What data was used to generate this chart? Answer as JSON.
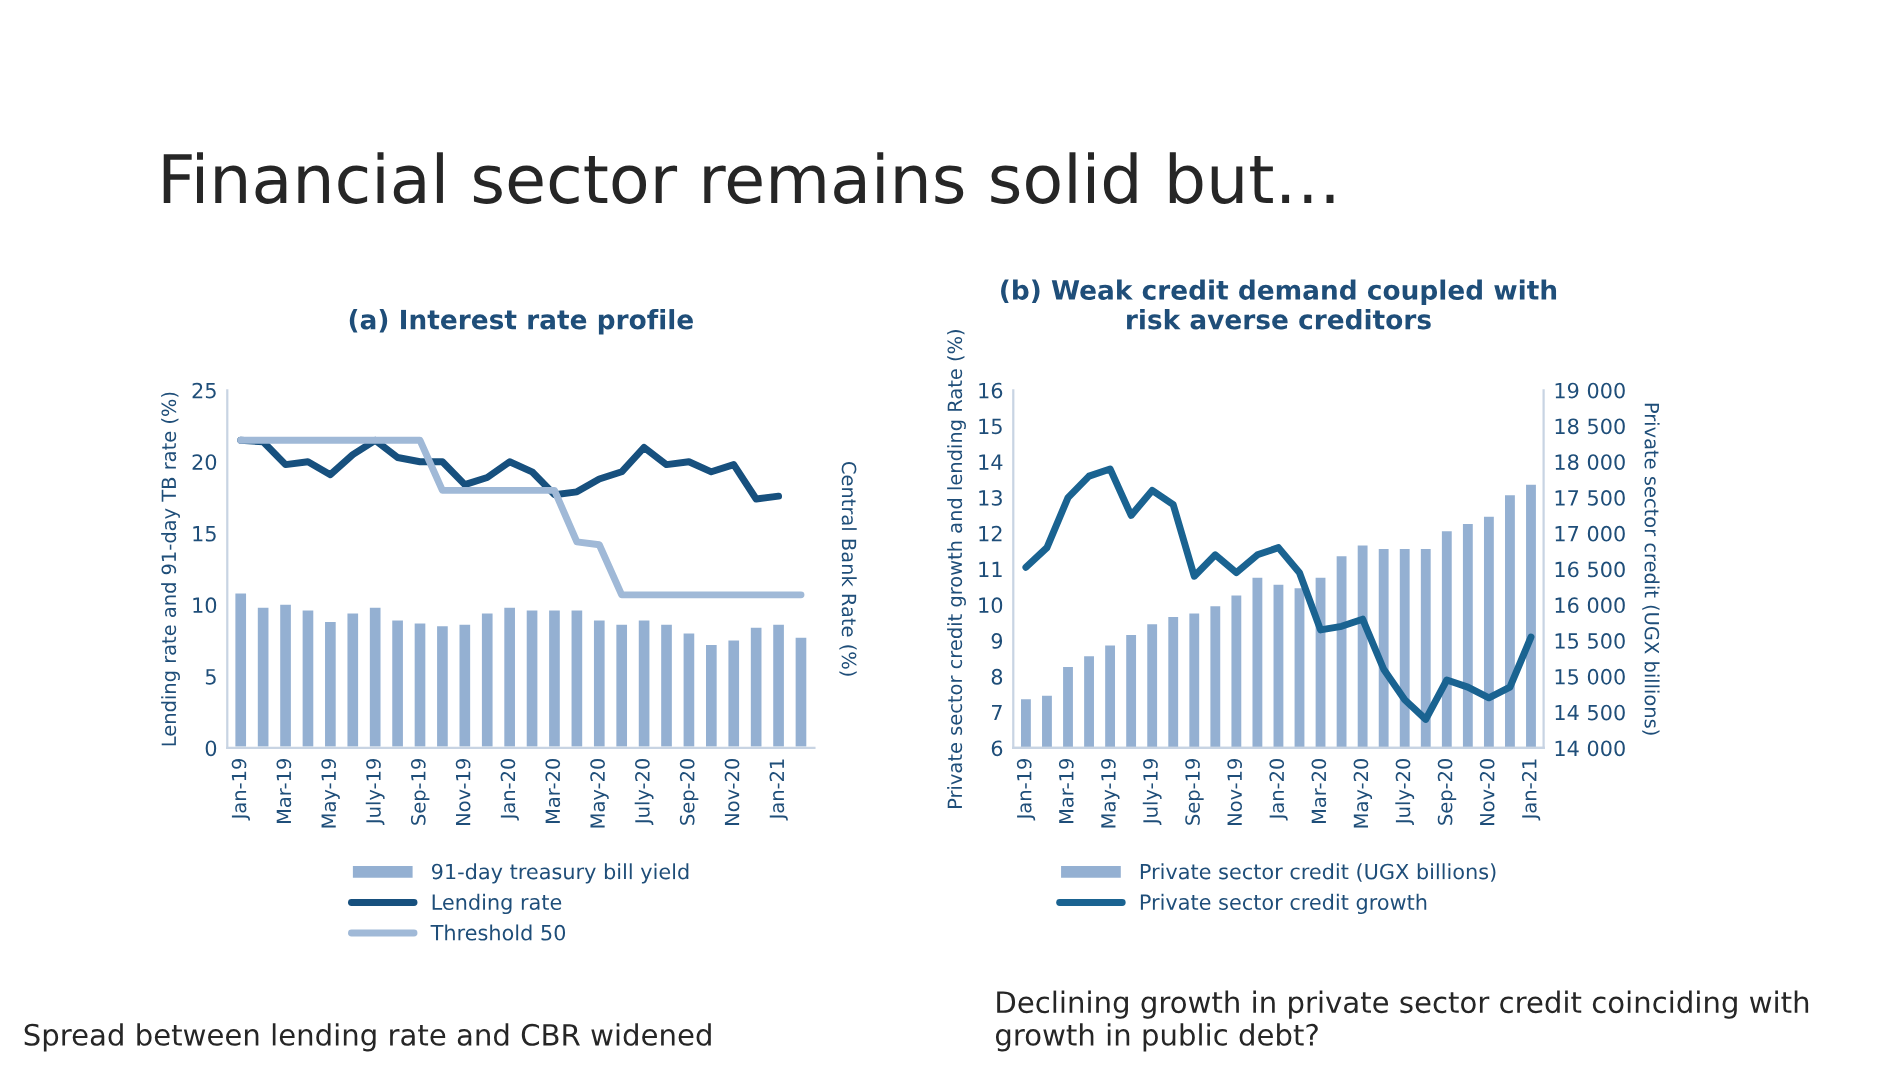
{
  "chart_data": [
    {
      "type": "bar",
      "title": "(a) Interest rate profile",
      "ylabel": "Lending rate and 91-day TB rate (%)",
      "y2label": "Central Bank Rate (%)",
      "categories": [
        "Jan-19",
        null,
        "Mar-19",
        null,
        "May-19",
        null,
        "July-19",
        null,
        "Sep-19",
        null,
        "Nov-19",
        null,
        "Jan-20",
        null,
        "Mar-20",
        null,
        "May-20",
        null,
        "July-20",
        null,
        "Sep-20",
        null,
        "Nov-20",
        null,
        "Jan-21",
        null
      ],
      "series": [
        {
          "name": "91-day treasury bill yield",
          "color": "#94b0d2",
          "values": [
            10.9,
            9.9,
            10.1,
            9.7,
            8.9,
            9.5,
            9.9,
            9.0,
            8.8,
            8.6,
            8.7,
            9.5,
            9.9,
            9.7,
            9.7,
            9.7,
            9.0,
            8.7,
            9.0,
            8.7,
            8.1,
            7.3,
            7.6,
            8.5,
            8.7,
            7.8
          ]
        },
        {
          "name": "Lending rate",
          "type": "line",
          "color": "#17507e",
          "values": [
            21.5,
            21.4,
            19.8,
            20.0,
            19.1,
            20.5,
            21.5,
            20.3,
            20.0,
            20.0,
            18.4,
            18.9,
            20.0,
            19.3,
            17.7,
            17.9,
            18.8,
            19.3,
            21.0,
            19.8,
            20.0,
            19.3,
            19.8,
            17.4,
            17.6,
            null
          ]
        },
        {
          "name": "Threshold 50",
          "type": "line",
          "color": "#a0b9d7",
          "values": [
            21.5,
            21.5,
            21.5,
            21.5,
            21.5,
            21.5,
            21.5,
            21.5,
            21.5,
            18.0,
            18.0,
            18.0,
            18.0,
            18.0,
            18.0,
            14.4,
            14.2,
            10.7,
            10.7,
            10.7,
            10.7,
            10.7,
            10.7,
            10.7,
            10.7,
            10.7
          ]
        }
      ],
      "ylim": [
        0,
        25
      ],
      "yticks": [
        0,
        5,
        10,
        15,
        20,
        25
      ],
      "legend": "bottom",
      "annotations": [
        "Financial sector remains solid but…",
        "Spread between lending rate and CBR widened"
      ]
    },
    {
      "type": "bar",
      "title": "(b) Weak credit demand coupled with\nrisk averse creditors",
      "ylabel": "Private sector credit growth and lending Rate (%)",
      "y2label": "Private sector credit (UGX billions)",
      "categories": [
        "Jan-19",
        null,
        "Mar-19",
        null,
        "May-19",
        null,
        "July-19",
        null,
        "Sep-19",
        null,
        "Nov-19",
        null,
        "Jan-20",
        null,
        "Mar-20",
        null,
        "May-20",
        null,
        "July-20",
        null,
        "Sep-20",
        null,
        "Nov-20",
        null,
        "Jan-21"
      ],
      "series": [
        {
          "name": "Private sector credit (UGX billions)",
          "axis": "y2",
          "color": "#94b0d2",
          "values": [
            14700,
            14750,
            15150,
            15300,
            15450,
            15600,
            15750,
            15850,
            15900,
            16000,
            16150,
            16400,
            16300,
            16250,
            16400,
            16700,
            16850,
            16800,
            16800,
            16800,
            17050,
            17150,
            17250,
            17550,
            17700
          ]
        },
        {
          "name": "Private sector credit growth",
          "type": "line",
          "color": "#1a6391",
          "values": [
            11.05,
            11.6,
            13.0,
            13.6,
            13.8,
            12.5,
            13.2,
            12.8,
            10.8,
            11.4,
            10.9,
            11.4,
            11.6,
            10.9,
            9.3,
            9.4,
            9.6,
            8.2,
            7.35,
            6.8,
            7.9,
            7.7,
            7.4,
            7.7,
            9.1
          ]
        }
      ],
      "ylim": [
        6,
        16
      ],
      "yticks": [
        6,
        7,
        8,
        9,
        10,
        11,
        12,
        13,
        14,
        15,
        16
      ],
      "y2lim": [
        14000,
        19000
      ],
      "y2ticks": [
        {
          "value": 14000,
          "label": "14 000"
        },
        {
          "value": 14500,
          "label": "14 500"
        },
        {
          "value": 15000,
          "label": "15 000"
        },
        {
          "value": 15500,
          "label": "15 500"
        },
        {
          "value": 16000,
          "label": "16 000"
        },
        {
          "value": 16500,
          "label": "16 500"
        },
        {
          "value": 17000,
          "label": "17 000"
        },
        {
          "value": 17500,
          "label": "17 500"
        },
        {
          "value": 18000,
          "label": "18 000"
        },
        {
          "value": 18500,
          "label": "18 500"
        },
        {
          "value": 19000,
          "label": "19 000"
        }
      ],
      "legend": "bottom",
      "annotations": [
        "Declining growth in private sector credit coinciding with growth in public debt?"
      ]
    }
  ]
}
